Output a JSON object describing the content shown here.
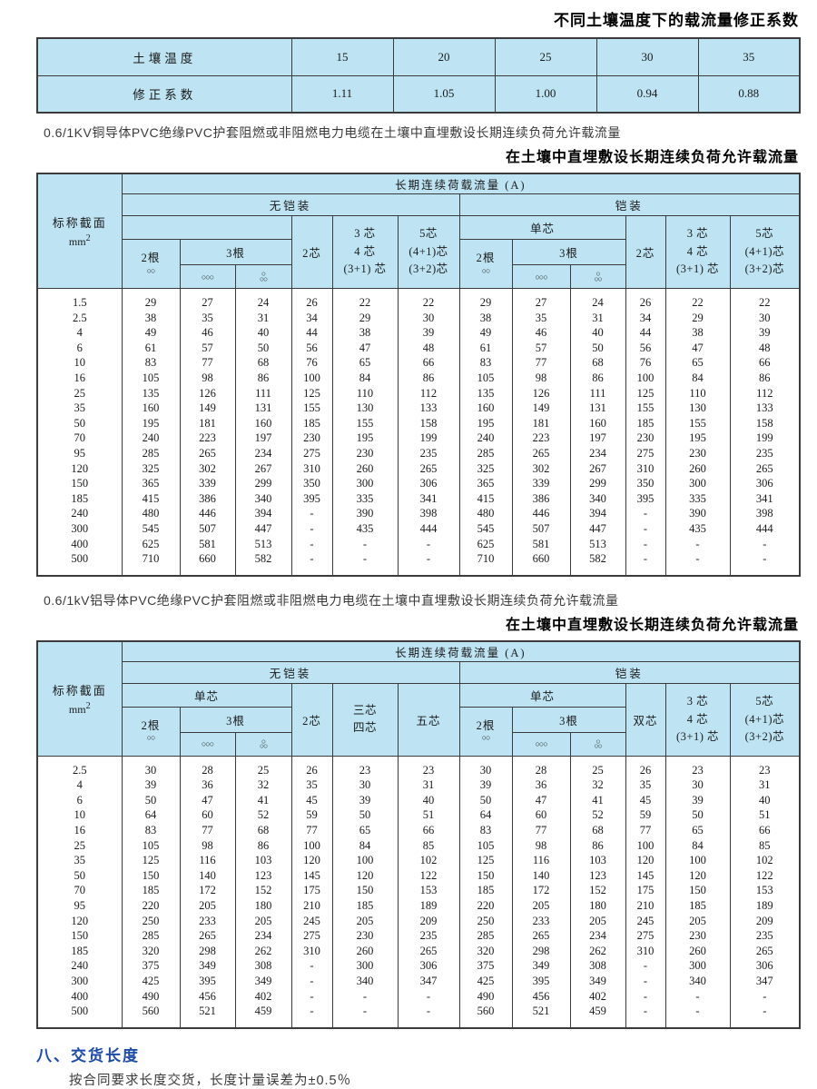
{
  "page": {
    "top_title": "不同土壤温度下的载流量修正系数",
    "copper_note": "0.6/1KV铜导体PVC绝缘PVC护套阻燃或非阻燃电力电缆在土壤中直埋敷设长期连续负荷允许载流量",
    "copper_title": "在土壤中直埋敷设长期连续负荷允许载流量",
    "aluminum_note": "0.6/1kV铝导体PVC绝缘PVC护套阻燃或非阻燃电力电缆在土壤中直埋敷设长期连续负荷允许载流量",
    "aluminum_title": "在土壤中直埋敷设长期连续负荷允许载流量",
    "section_heading": "八、交货长度",
    "section_body": "按合同要求长度交货，长度计量误差为±0.5％"
  },
  "correction_table": {
    "row_labels": [
      "土壤温度",
      "修正系数"
    ],
    "temperatures": [
      "15",
      "20",
      "25",
      "30",
      "35"
    ],
    "coefficients": [
      "1.11",
      "1.05",
      "1.00",
      "0.94",
      "0.88"
    ]
  },
  "icons": {
    "two_circles": "○○",
    "three_circles": "○○○",
    "tri_top": "○",
    "tri_bottom": "○○"
  },
  "copper_table": {
    "size_label": "标称截面",
    "size_unit": "mm",
    "size_sup": "2",
    "load_label": "长期连续荷载流量 (A)",
    "unarmored_label": "无铠装",
    "armored_label": "铠装",
    "single_core_label": "单芯",
    "wires2_label": "2根",
    "wires3_label": "3根",
    "core2_label": "2芯",
    "core345_lines": [
      "3 芯",
      "4 芯",
      "(3+1) 芯"
    ],
    "core5_lines": [
      "5芯",
      "(4+1)芯",
      "(3+2)芯"
    ],
    "rows": [
      [
        "1.5",
        "29",
        "27",
        "24",
        "26",
        "22",
        "22",
        "29",
        "27",
        "24",
        "26",
        "22",
        "22"
      ],
      [
        "2.5",
        "38",
        "35",
        "31",
        "34",
        "29",
        "30",
        "38",
        "35",
        "31",
        "34",
        "29",
        "30"
      ],
      [
        "4",
        "49",
        "46",
        "40",
        "44",
        "38",
        "39",
        "49",
        "46",
        "40",
        "44",
        "38",
        "39"
      ],
      [
        "6",
        "61",
        "57",
        "50",
        "56",
        "47",
        "48",
        "61",
        "57",
        "50",
        "56",
        "47",
        "48"
      ],
      [
        "10",
        "83",
        "77",
        "68",
        "76",
        "65",
        "66",
        "83",
        "77",
        "68",
        "76",
        "65",
        "66"
      ],
      [
        "16",
        "105",
        "98",
        "86",
        "100",
        "84",
        "86",
        "105",
        "98",
        "86",
        "100",
        "84",
        "86"
      ],
      [
        "25",
        "135",
        "126",
        "111",
        "125",
        "110",
        "112",
        "135",
        "126",
        "111",
        "125",
        "110",
        "112"
      ],
      [
        "35",
        "160",
        "149",
        "131",
        "155",
        "130",
        "133",
        "160",
        "149",
        "131",
        "155",
        "130",
        "133"
      ],
      [
        "50",
        "195",
        "181",
        "160",
        "185",
        "155",
        "158",
        "195",
        "181",
        "160",
        "185",
        "155",
        "158"
      ],
      [
        "70",
        "240",
        "223",
        "197",
        "230",
        "195",
        "199",
        "240",
        "223",
        "197",
        "230",
        "195",
        "199"
      ],
      [
        "95",
        "285",
        "265",
        "234",
        "275",
        "230",
        "235",
        "285",
        "265",
        "234",
        "275",
        "230",
        "235"
      ],
      [
        "120",
        "325",
        "302",
        "267",
        "310",
        "260",
        "265",
        "325",
        "302",
        "267",
        "310",
        "260",
        "265"
      ],
      [
        "150",
        "365",
        "339",
        "299",
        "350",
        "300",
        "306",
        "365",
        "339",
        "299",
        "350",
        "300",
        "306"
      ],
      [
        "185",
        "415",
        "386",
        "340",
        "395",
        "335",
        "341",
        "415",
        "386",
        "340",
        "395",
        "335",
        "341"
      ],
      [
        "240",
        "480",
        "446",
        "394",
        "-",
        "390",
        "398",
        "480",
        "446",
        "394",
        "-",
        "390",
        "398"
      ],
      [
        "300",
        "545",
        "507",
        "447",
        "-",
        "435",
        "444",
        "545",
        "507",
        "447",
        "-",
        "435",
        "444"
      ],
      [
        "400",
        "625",
        "581",
        "513",
        "-",
        "-",
        "-",
        "625",
        "581",
        "513",
        "-",
        "-",
        "-"
      ],
      [
        "500",
        "710",
        "660",
        "582",
        "-",
        "-",
        "-",
        "710",
        "660",
        "582",
        "-",
        "-",
        "-"
      ]
    ]
  },
  "aluminum_table": {
    "size_label": "标称截面",
    "size_unit": "mm",
    "size_sup": "2",
    "load_label": "长期连续荷载流量 (A)",
    "unarmored_label": "无铠装",
    "armored_label": "铠装",
    "single_core_label": "单芯",
    "wires2_label": "2根",
    "wires3_label": "3根",
    "core2_label": "2芯",
    "double_core_label": "双芯",
    "core34_lines": [
      "三芯",
      "四芯"
    ],
    "core5_label": "五芯",
    "core345_lines": [
      "3 芯",
      "4 芯",
      "(3+1) 芯"
    ],
    "core5_lines": [
      "5芯",
      "(4+1)芯",
      "(3+2)芯"
    ],
    "rows": [
      [
        "2.5",
        "30",
        "28",
        "25",
        "26",
        "23",
        "23",
        "30",
        "28",
        "25",
        "26",
        "23",
        "23"
      ],
      [
        "4",
        "39",
        "36",
        "32",
        "35",
        "30",
        "31",
        "39",
        "36",
        "32",
        "35",
        "30",
        "31"
      ],
      [
        "6",
        "50",
        "47",
        "41",
        "45",
        "39",
        "40",
        "50",
        "47",
        "41",
        "45",
        "39",
        "40"
      ],
      [
        "10",
        "64",
        "60",
        "52",
        "59",
        "50",
        "51",
        "64",
        "60",
        "52",
        "59",
        "50",
        "51"
      ],
      [
        "16",
        "83",
        "77",
        "68",
        "77",
        "65",
        "66",
        "83",
        "77",
        "68",
        "77",
        "65",
        "66"
      ],
      [
        "25",
        "105",
        "98",
        "86",
        "100",
        "84",
        "85",
        "105",
        "98",
        "86",
        "100",
        "84",
        "85"
      ],
      [
        "35",
        "125",
        "116",
        "103",
        "120",
        "100",
        "102",
        "125",
        "116",
        "103",
        "120",
        "100",
        "102"
      ],
      [
        "50",
        "150",
        "140",
        "123",
        "145",
        "120",
        "122",
        "150",
        "140",
        "123",
        "145",
        "120",
        "122"
      ],
      [
        "70",
        "185",
        "172",
        "152",
        "175",
        "150",
        "153",
        "185",
        "172",
        "152",
        "175",
        "150",
        "153"
      ],
      [
        "95",
        "220",
        "205",
        "180",
        "210",
        "185",
        "189",
        "220",
        "205",
        "180",
        "210",
        "185",
        "189"
      ],
      [
        "120",
        "250",
        "233",
        "205",
        "245",
        "205",
        "209",
        "250",
        "233",
        "205",
        "245",
        "205",
        "209"
      ],
      [
        "150",
        "285",
        "265",
        "234",
        "275",
        "230",
        "235",
        "285",
        "265",
        "234",
        "275",
        "230",
        "235"
      ],
      [
        "185",
        "320",
        "298",
        "262",
        "310",
        "260",
        "265",
        "320",
        "298",
        "262",
        "310",
        "260",
        "265"
      ],
      [
        "240",
        "375",
        "349",
        "308",
        "-",
        "300",
        "306",
        "375",
        "349",
        "308",
        "-",
        "300",
        "306"
      ],
      [
        "300",
        "425",
        "395",
        "349",
        "-",
        "340",
        "347",
        "425",
        "395",
        "349",
        "-",
        "340",
        "347"
      ],
      [
        "400",
        "490",
        "456",
        "402",
        "-",
        "-",
        "-",
        "490",
        "456",
        "402",
        "-",
        "-",
        "-"
      ],
      [
        "500",
        "560",
        "521",
        "459",
        "-",
        "-",
        "-",
        "560",
        "521",
        "459",
        "-",
        "-",
        "-"
      ]
    ]
  }
}
